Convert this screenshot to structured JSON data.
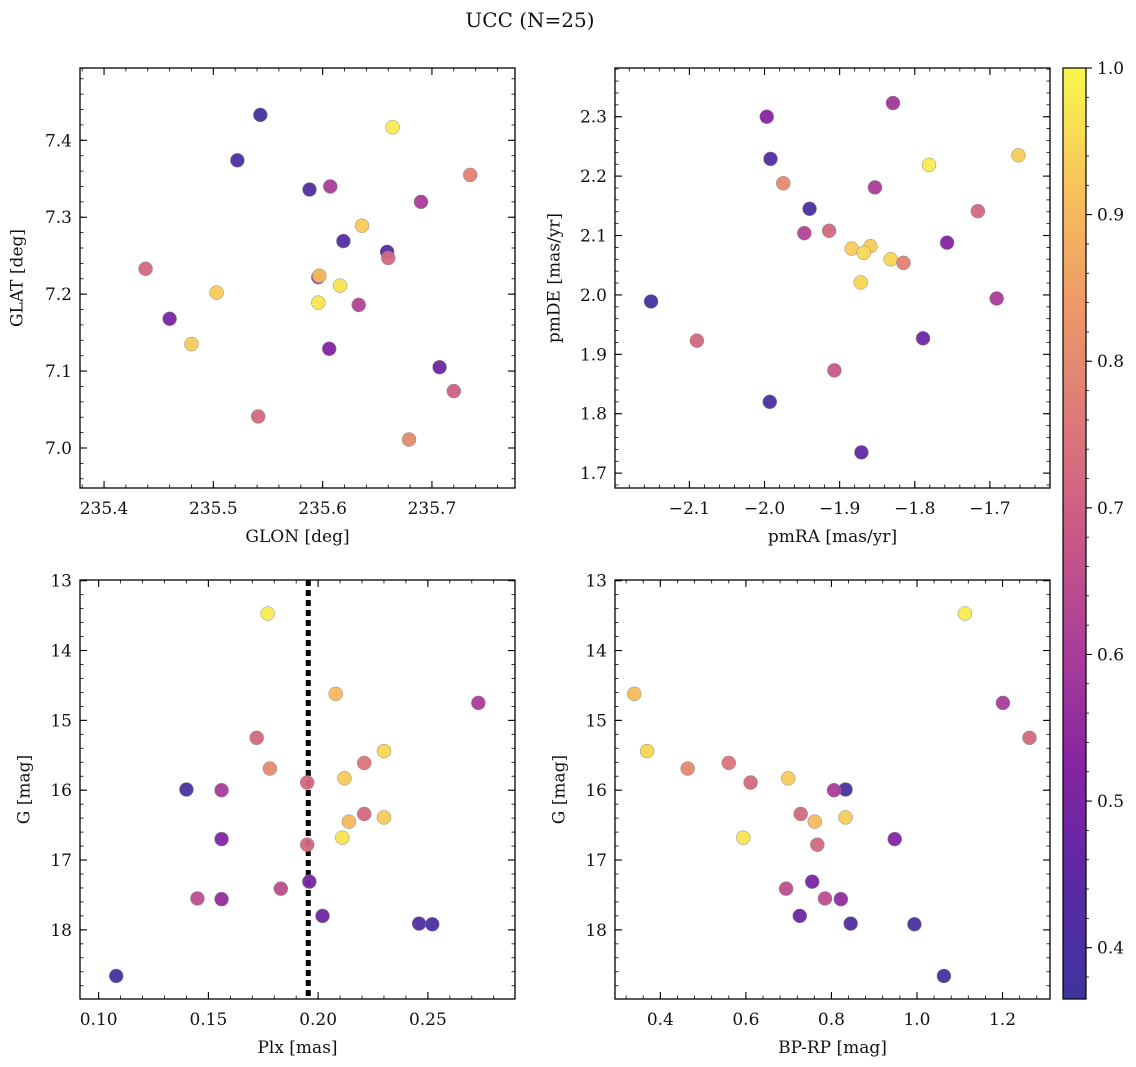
{
  "title": "UCC (N=25)",
  "colorbar": {
    "min": 0.365,
    "max": 1.0,
    "ticks": [
      0.4,
      0.5,
      0.6,
      0.7,
      0.8,
      0.9,
      1.0
    ],
    "tick_labels": [
      "0.4",
      "0.5",
      "0.6",
      "0.7",
      "0.8",
      "0.9",
      "1.0"
    ],
    "colormap": "plasma"
  },
  "chart_data": [
    {
      "type": "scatter",
      "id": "glon-glat",
      "xlabel": "GLON [deg]",
      "ylabel": "GLAT [deg]",
      "xlim": [
        235.378,
        235.776
      ],
      "ylim": [
        6.948,
        7.494
      ],
      "xticks": [
        235.4,
        235.5,
        235.6,
        235.7
      ],
      "xtick_labels": [
        "235.4",
        "235.5",
        "235.6",
        "235.7"
      ],
      "yticks": [
        7.0,
        7.1,
        7.2,
        7.3,
        7.4
      ],
      "ytick_labels": [
        "7.0",
        "7.1",
        "7.2",
        "7.3",
        "7.4"
      ],
      "invert_y": false,
      "points": [
        {
          "x": 235.543,
          "y": 7.433,
          "c": 0.38
        },
        {
          "x": 235.522,
          "y": 7.374,
          "c": 0.4
        },
        {
          "x": 235.588,
          "y": 7.336,
          "c": 0.42
        },
        {
          "x": 235.607,
          "y": 7.34,
          "c": 0.6
        },
        {
          "x": 235.664,
          "y": 7.417,
          "c": 0.98
        },
        {
          "x": 235.735,
          "y": 7.355,
          "c": 0.78
        },
        {
          "x": 235.69,
          "y": 7.32,
          "c": 0.6
        },
        {
          "x": 235.636,
          "y": 7.289,
          "c": 0.93
        },
        {
          "x": 235.619,
          "y": 7.269,
          "c": 0.42
        },
        {
          "x": 235.659,
          "y": 7.255,
          "c": 0.42
        },
        {
          "x": 235.66,
          "y": 7.247,
          "c": 0.72
        },
        {
          "x": 235.438,
          "y": 7.233,
          "c": 0.72
        },
        {
          "x": 235.596,
          "y": 7.222,
          "c": 0.62
        },
        {
          "x": 235.597,
          "y": 7.224,
          "c": 0.9
        },
        {
          "x": 235.616,
          "y": 7.211,
          "c": 0.97
        },
        {
          "x": 235.503,
          "y": 7.202,
          "c": 0.93
        },
        {
          "x": 235.596,
          "y": 7.189,
          "c": 0.97
        },
        {
          "x": 235.633,
          "y": 7.186,
          "c": 0.62
        },
        {
          "x": 235.46,
          "y": 7.168,
          "c": 0.5
        },
        {
          "x": 235.48,
          "y": 7.135,
          "c": 0.93
        },
        {
          "x": 235.606,
          "y": 7.129,
          "c": 0.52
        },
        {
          "x": 235.707,
          "y": 7.105,
          "c": 0.48
        },
        {
          "x": 235.72,
          "y": 7.074,
          "c": 0.7
        },
        {
          "x": 235.541,
          "y": 7.041,
          "c": 0.72
        },
        {
          "x": 235.679,
          "y": 7.011,
          "c": 0.8
        }
      ]
    },
    {
      "type": "scatter",
      "id": "pmra-pmde",
      "xlabel": "pmRA [mas/yr]",
      "ylabel": "pmDE [mas/yr]",
      "xlim": [
        -2.199,
        -1.62
      ],
      "ylim": [
        1.675,
        2.382
      ],
      "xticks": [
        -2.1,
        -2.0,
        -1.9,
        -1.8,
        -1.7
      ],
      "xtick_labels": [
        "−2.1",
        "−2.0",
        "−1.9",
        "−1.8",
        "−1.7"
      ],
      "yticks": [
        1.7,
        1.8,
        1.9,
        2.0,
        2.1,
        2.2,
        2.3
      ],
      "ytick_labels": [
        "1.7",
        "1.8",
        "1.9",
        "2.0",
        "2.1",
        "2.2",
        "2.3"
      ],
      "invert_y": false,
      "points": [
        {
          "x": -1.997,
          "y": 2.3,
          "c": 0.52
        },
        {
          "x": -1.829,
          "y": 2.323,
          "c": 0.58
        },
        {
          "x": -1.992,
          "y": 2.229,
          "c": 0.42
        },
        {
          "x": -1.975,
          "y": 2.188,
          "c": 0.8
        },
        {
          "x": -1.662,
          "y": 2.235,
          "c": 0.93
        },
        {
          "x": -1.781,
          "y": 2.219,
          "c": 0.98
        },
        {
          "x": -1.853,
          "y": 2.181,
          "c": 0.6
        },
        {
          "x": -1.94,
          "y": 2.145,
          "c": 0.4
        },
        {
          "x": -1.716,
          "y": 2.141,
          "c": 0.72
        },
        {
          "x": -1.947,
          "y": 2.104,
          "c": 0.62
        },
        {
          "x": -1.914,
          "y": 2.108,
          "c": 0.72
        },
        {
          "x": -1.884,
          "y": 2.078,
          "c": 0.93
        },
        {
          "x": -1.859,
          "y": 2.082,
          "c": 0.93
        },
        {
          "x": -1.868,
          "y": 2.071,
          "c": 0.95
        },
        {
          "x": -1.832,
          "y": 2.06,
          "c": 0.95
        },
        {
          "x": -1.815,
          "y": 2.054,
          "c": 0.78
        },
        {
          "x": -1.757,
          "y": 2.088,
          "c": 0.52
        },
        {
          "x": -1.872,
          "y": 2.021,
          "c": 0.95
        },
        {
          "x": -2.151,
          "y": 1.989,
          "c": 0.38
        },
        {
          "x": -1.691,
          "y": 1.994,
          "c": 0.6
        },
        {
          "x": -2.09,
          "y": 1.923,
          "c": 0.72
        },
        {
          "x": -1.789,
          "y": 1.927,
          "c": 0.48
        },
        {
          "x": -1.907,
          "y": 1.873,
          "c": 0.68
        },
        {
          "x": -1.993,
          "y": 1.82,
          "c": 0.4
        },
        {
          "x": -1.871,
          "y": 1.735,
          "c": 0.45
        }
      ]
    },
    {
      "type": "scatter",
      "id": "plx-g",
      "xlabel": "Plx [mas]",
      "ylabel": "G [mag]",
      "xlim": [
        0.0915,
        0.2897
      ],
      "ylim": [
        12.99,
        18.99
      ],
      "xticks": [
        0.1,
        0.15,
        0.2,
        0.25
      ],
      "xtick_labels": [
        "0.10",
        "0.15",
        "0.20",
        "0.25"
      ],
      "yticks": [
        13,
        14,
        15,
        16,
        17,
        18
      ],
      "ytick_labels": [
        "13",
        "14",
        "15",
        "16",
        "17",
        "18"
      ],
      "invert_y": true,
      "vline": 0.1955,
      "points": [
        {
          "x": 0.177,
          "y": 13.47,
          "c": 0.98
        },
        {
          "x": 0.208,
          "y": 14.62,
          "c": 0.9
        },
        {
          "x": 0.273,
          "y": 14.75,
          "c": 0.6
        },
        {
          "x": 0.172,
          "y": 15.25,
          "c": 0.72
        },
        {
          "x": 0.23,
          "y": 15.44,
          "c": 0.95
        },
        {
          "x": 0.221,
          "y": 15.61,
          "c": 0.75
        },
        {
          "x": 0.178,
          "y": 15.69,
          "c": 0.8
        },
        {
          "x": 0.212,
          "y": 15.83,
          "c": 0.93
        },
        {
          "x": 0.195,
          "y": 15.89,
          "c": 0.72
        },
        {
          "x": 0.14,
          "y": 15.99,
          "c": 0.4
        },
        {
          "x": 0.156,
          "y": 16.0,
          "c": 0.6
        },
        {
          "x": 0.23,
          "y": 16.39,
          "c": 0.93
        },
        {
          "x": 0.221,
          "y": 16.34,
          "c": 0.72
        },
        {
          "x": 0.214,
          "y": 16.45,
          "c": 0.9
        },
        {
          "x": 0.156,
          "y": 16.7,
          "c": 0.52
        },
        {
          "x": 0.211,
          "y": 16.68,
          "c": 0.97
        },
        {
          "x": 0.195,
          "y": 16.78,
          "c": 0.72
        },
        {
          "x": 0.196,
          "y": 17.31,
          "c": 0.5
        },
        {
          "x": 0.183,
          "y": 17.41,
          "c": 0.65
        },
        {
          "x": 0.145,
          "y": 17.55,
          "c": 0.65
        },
        {
          "x": 0.156,
          "y": 17.56,
          "c": 0.55
        },
        {
          "x": 0.202,
          "y": 17.8,
          "c": 0.48
        },
        {
          "x": 0.246,
          "y": 17.91,
          "c": 0.42
        },
        {
          "x": 0.252,
          "y": 17.92,
          "c": 0.4
        },
        {
          "x": 0.108,
          "y": 18.66,
          "c": 0.38
        }
      ]
    },
    {
      "type": "scatter",
      "id": "bprp-g",
      "xlabel": "BP-RP [mag]",
      "ylabel": "G [mag]",
      "xlim": [
        0.294,
        1.311
      ],
      "ylim": [
        12.99,
        18.99
      ],
      "xticks": [
        0.4,
        0.6,
        0.8,
        1.0,
        1.2
      ],
      "xtick_labels": [
        "0.4",
        "0.6",
        "0.8",
        "1.0",
        "1.2"
      ],
      "yticks": [
        13,
        14,
        15,
        16,
        17,
        18
      ],
      "ytick_labels": [
        "13",
        "14",
        "15",
        "16",
        "17",
        "18"
      ],
      "invert_y": true,
      "points": [
        {
          "x": 1.112,
          "y": 13.47,
          "c": 0.98
        },
        {
          "x": 0.339,
          "y": 14.62,
          "c": 0.9
        },
        {
          "x": 1.201,
          "y": 14.75,
          "c": 0.6
        },
        {
          "x": 1.263,
          "y": 15.25,
          "c": 0.72
        },
        {
          "x": 0.369,
          "y": 15.44,
          "c": 0.95
        },
        {
          "x": 0.56,
          "y": 15.61,
          "c": 0.75
        },
        {
          "x": 0.464,
          "y": 15.69,
          "c": 0.8
        },
        {
          "x": 0.699,
          "y": 15.83,
          "c": 0.93
        },
        {
          "x": 0.611,
          "y": 15.89,
          "c": 0.72
        },
        {
          "x": 0.833,
          "y": 15.99,
          "c": 0.4
        },
        {
          "x": 0.806,
          "y": 16.0,
          "c": 0.6
        },
        {
          "x": 0.833,
          "y": 16.39,
          "c": 0.93
        },
        {
          "x": 0.728,
          "y": 16.34,
          "c": 0.72
        },
        {
          "x": 0.761,
          "y": 16.45,
          "c": 0.9
        },
        {
          "x": 0.948,
          "y": 16.7,
          "c": 0.52
        },
        {
          "x": 0.594,
          "y": 16.68,
          "c": 0.97
        },
        {
          "x": 0.767,
          "y": 16.78,
          "c": 0.72
        },
        {
          "x": 0.755,
          "y": 17.31,
          "c": 0.5
        },
        {
          "x": 0.694,
          "y": 17.41,
          "c": 0.65
        },
        {
          "x": 0.785,
          "y": 17.55,
          "c": 0.65
        },
        {
          "x": 0.822,
          "y": 17.56,
          "c": 0.55
        },
        {
          "x": 0.726,
          "y": 17.8,
          "c": 0.48
        },
        {
          "x": 0.845,
          "y": 17.91,
          "c": 0.42
        },
        {
          "x": 0.994,
          "y": 17.92,
          "c": 0.4
        },
        {
          "x": 1.063,
          "y": 18.66,
          "c": 0.38
        }
      ]
    }
  ]
}
